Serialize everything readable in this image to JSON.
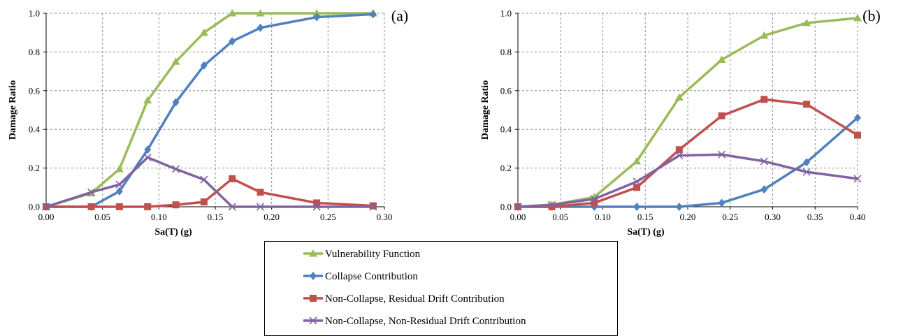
{
  "chart_data": [
    {
      "type": "line",
      "panel_label": "(a)",
      "xlabel": "Sa(T)  (g)",
      "ylabel": "Damage Ratio",
      "xlim": [
        0,
        0.3
      ],
      "ylim": [
        0,
        1.0
      ],
      "xticks": [
        "0.00",
        "0.05",
        "0.10",
        "0.15",
        "0.20",
        "0.25",
        "0.30"
      ],
      "yticks": [
        "0.0",
        "0.2",
        "0.4",
        "0.6",
        "0.8",
        "1.0"
      ],
      "grid": true,
      "series": [
        {
          "name": "Vulnerability Function",
          "color": "#9BBB59",
          "marker": "triangle",
          "x": [
            0.0,
            0.04,
            0.065,
            0.09,
            0.115,
            0.14,
            0.165,
            0.19,
            0.24,
            0.29
          ],
          "y": [
            0.0,
            0.07,
            0.195,
            0.55,
            0.75,
            0.9,
            1.0,
            1.0,
            1.0,
            1.0
          ]
        },
        {
          "name": "Collapse Contribution",
          "color": "#4F81BD",
          "marker": "diamond",
          "x": [
            0.0,
            0.04,
            0.065,
            0.09,
            0.115,
            0.14,
            0.165,
            0.19,
            0.24,
            0.29
          ],
          "y": [
            0.0,
            0.0,
            0.08,
            0.295,
            0.54,
            0.73,
            0.855,
            0.925,
            0.98,
            0.995
          ]
        },
        {
          "name": "Non-Collapse, Residual Drift Contribution",
          "color": "#C0504D",
          "marker": "square",
          "x": [
            0.0,
            0.04,
            0.065,
            0.09,
            0.115,
            0.14,
            0.165,
            0.19,
            0.24,
            0.29
          ],
          "y": [
            0.0,
            0.0,
            0.0,
            0.0,
            0.01,
            0.025,
            0.145,
            0.075,
            0.02,
            0.005
          ]
        },
        {
          "name": "Non-Collapse, Non-Residual Drift Contribution",
          "color": "#8064A2",
          "marker": "x",
          "x": [
            0.0,
            0.04,
            0.065,
            0.09,
            0.115,
            0.14,
            0.165,
            0.19,
            0.24,
            0.29
          ],
          "y": [
            0.0,
            0.075,
            0.115,
            0.255,
            0.195,
            0.14,
            0.0,
            0.0,
            0.0,
            0.0
          ]
        }
      ]
    },
    {
      "type": "line",
      "panel_label": "(b)",
      "xlabel": "Sa(T)  (g)",
      "ylabel": "Damage Ratio",
      "xlim": [
        0,
        0.4
      ],
      "ylim": [
        0,
        1.0
      ],
      "xticks": [
        "0.00",
        "0.05",
        "0.10",
        "0.15",
        "0.20",
        "0.25",
        "0.30",
        "0.35",
        "0.40"
      ],
      "yticks": [
        "0.0",
        "0.2",
        "0.4",
        "0.6",
        "0.8",
        "1.0"
      ],
      "grid": true,
      "series": [
        {
          "name": "Vulnerability Function",
          "color": "#9BBB59",
          "marker": "triangle",
          "x": [
            0.0,
            0.04,
            0.09,
            0.14,
            0.19,
            0.24,
            0.29,
            0.34,
            0.4
          ],
          "y": [
            0.0,
            0.01,
            0.05,
            0.235,
            0.565,
            0.76,
            0.885,
            0.95,
            0.975
          ]
        },
        {
          "name": "Collapse Contribution",
          "color": "#4F81BD",
          "marker": "diamond",
          "x": [
            0.0,
            0.04,
            0.09,
            0.14,
            0.19,
            0.24,
            0.29,
            0.34,
            0.4
          ],
          "y": [
            0.0,
            0.0,
            0.0,
            0.0,
            0.0,
            0.02,
            0.09,
            0.23,
            0.46
          ]
        },
        {
          "name": "Non-Collapse, Residual Drift Contribution",
          "color": "#C0504D",
          "marker": "square",
          "x": [
            0.0,
            0.04,
            0.09,
            0.14,
            0.19,
            0.24,
            0.29,
            0.34,
            0.4
          ],
          "y": [
            0.0,
            0.0,
            0.02,
            0.1,
            0.295,
            0.47,
            0.555,
            0.53,
            0.37
          ]
        },
        {
          "name": "Non-Collapse, Non-Residual Drift Contribution",
          "color": "#8064A2",
          "marker": "x",
          "x": [
            0.0,
            0.04,
            0.09,
            0.14,
            0.19,
            0.24,
            0.29,
            0.34,
            0.4
          ],
          "y": [
            0.0,
            0.01,
            0.04,
            0.13,
            0.265,
            0.27,
            0.235,
            0.18,
            0.145
          ]
        }
      ]
    }
  ],
  "legend": {
    "placement": "bottom-center",
    "items": [
      {
        "label": "Vulnerability Function",
        "color": "#9BBB59",
        "marker": "triangle"
      },
      {
        "label": "Collapse Contribution",
        "color": "#4F81BD",
        "marker": "diamond"
      },
      {
        "label": "Non-Collapse, Residual Drift Contribution",
        "color": "#C0504D",
        "marker": "square"
      },
      {
        "label": "Non-Collapse, Non-Residual Drift Contribution",
        "color": "#8064A2",
        "marker": "x"
      }
    ]
  }
}
